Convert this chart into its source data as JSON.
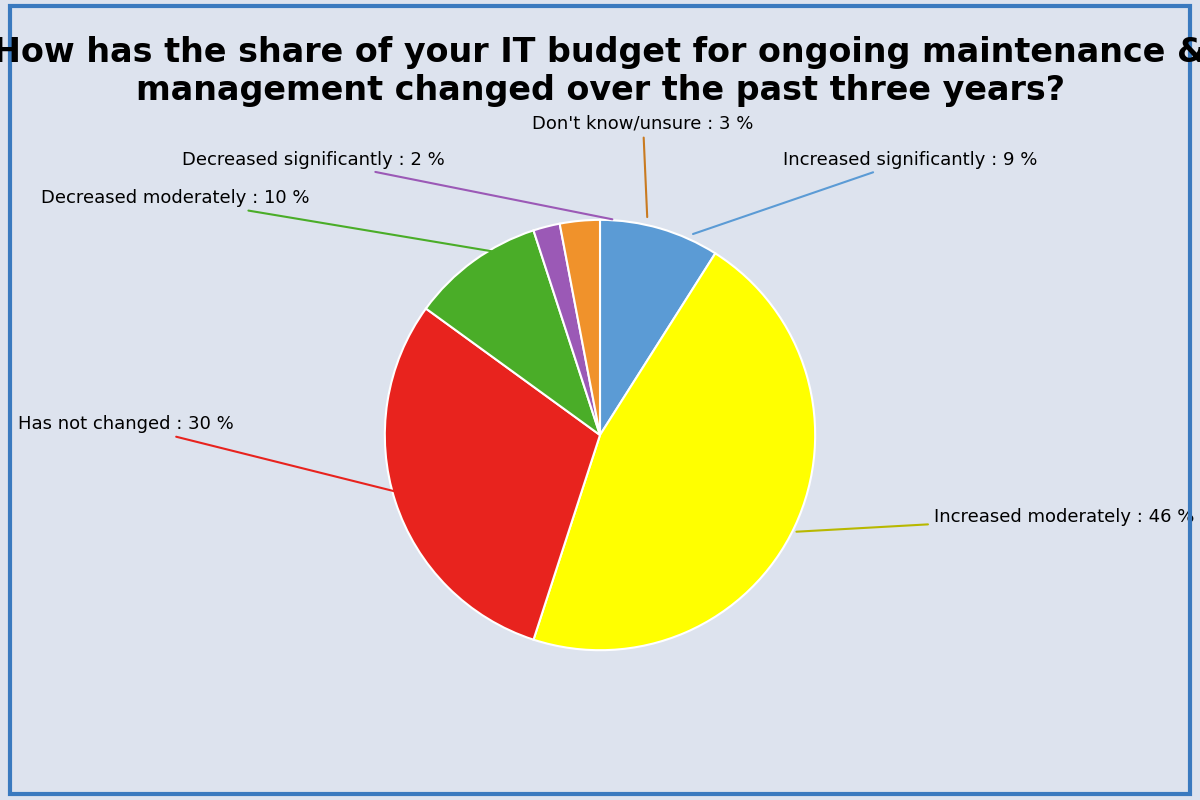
{
  "title": "How has the share of your IT budget for ongoing maintenance &\nmanagement changed over the past three years?",
  "labels": [
    "Increased significantly",
    "Increased moderately",
    "Has not changed",
    "Decreased moderately",
    "Decreased significantly",
    "Don't know/unsure"
  ],
  "values": [
    9,
    46,
    30,
    10,
    2,
    3
  ],
  "colors": [
    "#5b9bd5",
    "#ffff00",
    "#e8231e",
    "#4aad28",
    "#9b59b6",
    "#f0922b"
  ],
  "background_color": "#dde3ee",
  "title_fontsize": 24,
  "label_fontsize": 13,
  "legend_fontsize": 13,
  "border_color": "#3a7abf"
}
